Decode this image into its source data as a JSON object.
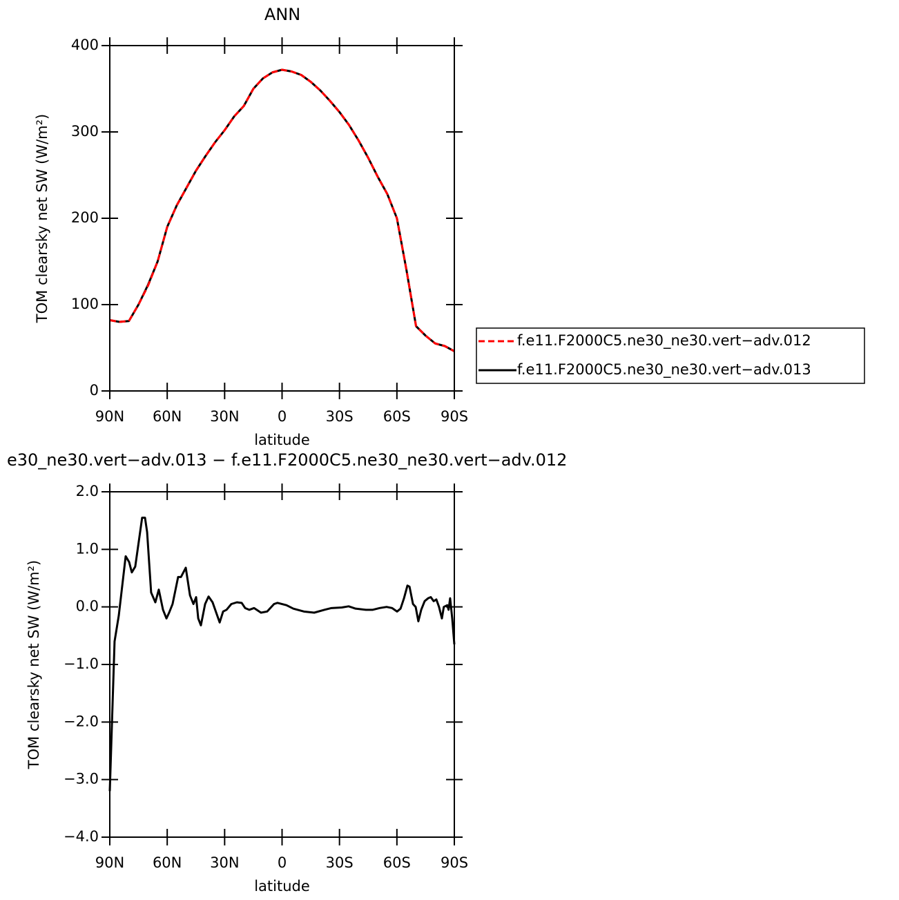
{
  "chart_data": [
    {
      "type": "line",
      "title": "ANN",
      "xlabel": "latitude",
      "ylabel": "TOM clearsky net SW (W/m²)",
      "x": [
        90,
        85,
        80,
        75,
        70,
        65,
        60,
        55,
        50,
        45,
        40,
        35,
        30,
        25,
        20,
        15,
        10,
        5,
        0,
        -5,
        -10,
        -15,
        -20,
        -25,
        -30,
        -35,
        -40,
        -45,
        -50,
        -55,
        -60,
        -65,
        -70,
        -75,
        -80,
        -85,
        -90
      ],
      "series": [
        {
          "name": "f.e11.F2000C5.ne30_ne30.vert−adv.012",
          "color": "#ff0000",
          "line_style": "dashed",
          "values": [
            82,
            80,
            81,
            100,
            122,
            150,
            190,
            215,
            235,
            255,
            272,
            288,
            302,
            318,
            330,
            350,
            362,
            369,
            372,
            370,
            366,
            358,
            348,
            336,
            323,
            308,
            290,
            270,
            248,
            228,
            200,
            140,
            75,
            64,
            55,
            52,
            46
          ]
        },
        {
          "name": "f.e11.F2000C5.ne30_ne30.vert−adv.013",
          "color": "#000000",
          "line_style": "solid",
          "values": [
            82,
            80,
            81,
            100,
            123,
            150,
            190,
            215,
            235,
            255,
            272,
            288,
            302,
            318,
            330,
            350,
            362,
            369,
            372,
            370,
            366,
            358,
            348,
            336,
            323,
            308,
            290,
            270,
            248,
            228,
            200,
            140,
            75,
            64,
            55,
            52,
            46
          ]
        }
      ],
      "xlim": [
        90,
        -90
      ],
      "xticks": [
        {
          "value": 90,
          "label": "90N"
        },
        {
          "value": 60,
          "label": "60N"
        },
        {
          "value": 30,
          "label": "30N"
        },
        0,
        {
          "value": -30,
          "label": "30S"
        },
        {
          "value": -60,
          "label": "60S"
        },
        {
          "value": -90,
          "label": "90S"
        }
      ],
      "ylim": [
        0,
        400
      ],
      "yticks": [
        0,
        100,
        200,
        300,
        400
      ],
      "legend": "right"
    },
    {
      "type": "line",
      "title": "e30_ne30.vert−adv.013 − f.e11.F2000C5.ne30_ne30.vert−adv.012",
      "xlabel": "latitude",
      "ylabel": "TOM clearsky net SW (W/m²)",
      "x": [
        90.0,
        87.5,
        85.3,
        81.7,
        79.9,
        78.5,
        76.7,
        73.1,
        71.6,
        70.5,
        68.4,
        66.2,
        64.4,
        62.2,
        60.4,
        59.0,
        57.2,
        54.3,
        52.8,
        50.3,
        48.1,
        46.3,
        44.9,
        43.8,
        42.4,
        40.2,
        38.4,
        36.3,
        34.4,
        32.6,
        30.8,
        29.0,
        26.5,
        23.6,
        21.1,
        19.3,
        17.1,
        14.6,
        11.0,
        7.8,
        4.2,
        2.4,
        -2.3,
        -5.9,
        -11.4,
        -16.8,
        -22.2,
        -25.8,
        -31.2,
        -34.8,
        -38.4,
        -43.8,
        -47.4,
        -51.0,
        -54.6,
        -57.5,
        -60.1,
        -61.9,
        -63.7,
        -65.5,
        -66.6,
        -68.4,
        -69.8,
        -71.2,
        -72.7,
        -74.5,
        -76.3,
        -77.7,
        -79.2,
        -80.6,
        -82.0,
        -83.5,
        -84.5,
        -86.3,
        -87.0,
        -87.8,
        -88.9,
        -90.0
      ],
      "values": [
        -3.2,
        -0.6,
        -0.15,
        0.88,
        0.78,
        0.6,
        0.7,
        1.55,
        1.55,
        1.3,
        0.25,
        0.08,
        0.3,
        -0.05,
        -0.2,
        -0.1,
        0.05,
        0.52,
        0.52,
        0.68,
        0.2,
        0.05,
        0.17,
        -0.2,
        -0.32,
        0.05,
        0.18,
        0.08,
        -0.1,
        -0.27,
        -0.08,
        -0.05,
        0.05,
        0.08,
        0.07,
        -0.02,
        -0.05,
        -0.02,
        -0.1,
        -0.08,
        0.05,
        0.07,
        0.03,
        -0.03,
        -0.08,
        -0.1,
        -0.05,
        -0.02,
        -0.01,
        0.01,
        -0.03,
        -0.05,
        -0.05,
        -0.02,
        0.0,
        -0.02,
        -0.08,
        -0.03,
        0.15,
        0.37,
        0.35,
        0.05,
        0.0,
        -0.25,
        -0.05,
        0.1,
        0.15,
        0.17,
        0.1,
        0.13,
        0.0,
        -0.2,
        0.0,
        0.03,
        -0.05,
        0.15,
        -0.2,
        -0.65
      ],
      "color": "#000000",
      "xlim": [
        90,
        -90
      ],
      "xticks": [
        {
          "value": 90,
          "label": "90N"
        },
        {
          "value": 60,
          "label": "60N"
        },
        {
          "value": 30,
          "label": "30N"
        },
        0,
        {
          "value": -30,
          "label": "30S"
        },
        {
          "value": -60,
          "label": "60S"
        },
        {
          "value": -90,
          "label": "90S"
        }
      ],
      "ylim": [
        -4,
        2
      ],
      "yticks": [
        {
          "value": -4,
          "label": "−4.0"
        },
        {
          "value": -3,
          "label": "−3.0"
        },
        {
          "value": -2,
          "label": "−2.0"
        },
        {
          "value": -1,
          "label": "−1.0"
        },
        {
          "value": 0,
          "label": "0.0"
        },
        {
          "value": 1,
          "label": "1.0"
        },
        {
          "value": 2,
          "label": "2.0"
        }
      ]
    }
  ]
}
